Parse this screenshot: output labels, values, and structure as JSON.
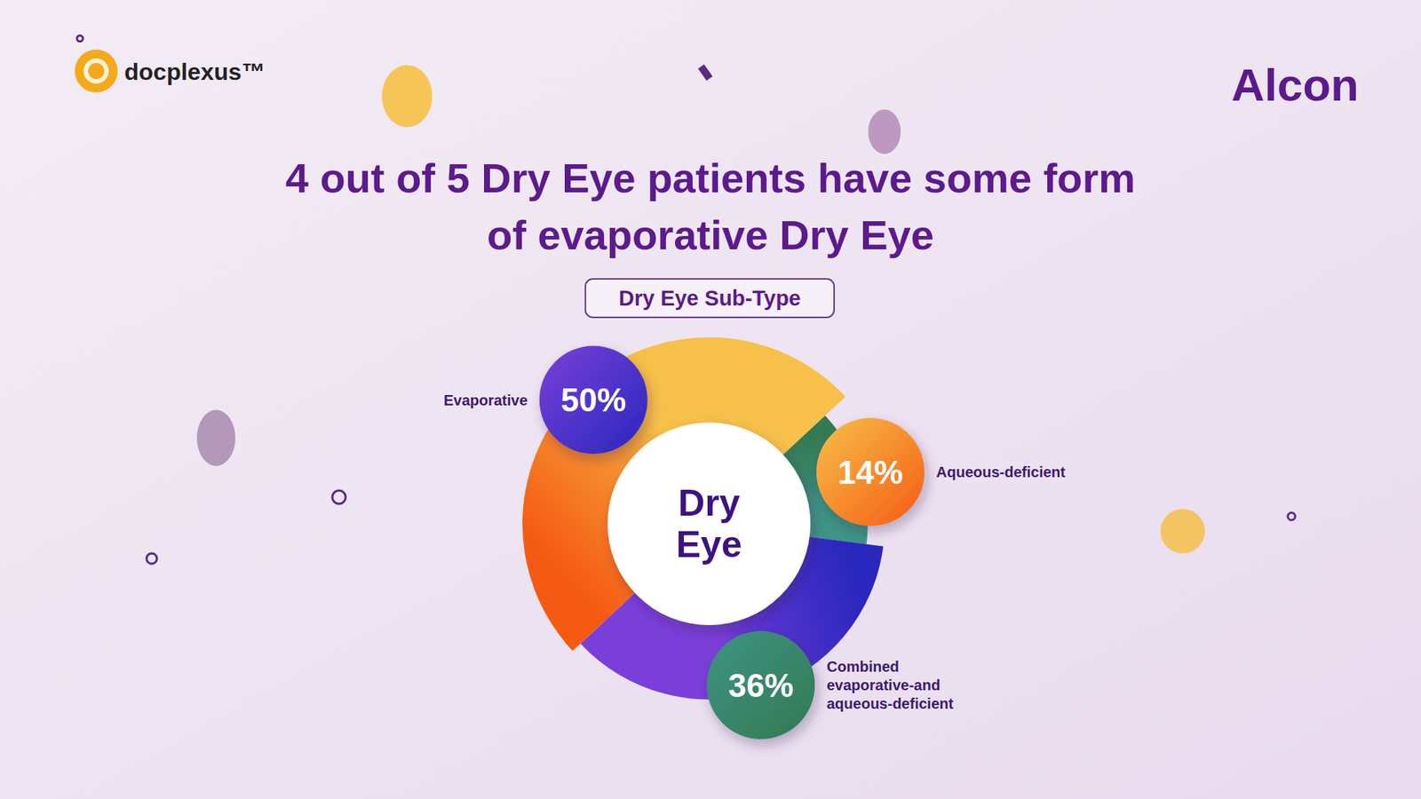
{
  "logos": [
    "docplexus™",
    "Alcon"
  ],
  "chart_data": {
    "type": "pie",
    "title": "4 out of 5 Dry Eye patients have some form of evaporative Dry Eye",
    "subtitle": "Dry Eye Sub-Type",
    "annotations": [
      "Dry Eye"
    ],
    "categories": [
      "Evaporative",
      "Aqueous-deficient",
      "Combined evaporative-and aqueous-deficient"
    ],
    "values": [
      50,
      14,
      36
    ],
    "value_labels": [
      "50%",
      "14%",
      "36%"
    ],
    "data_labels": true,
    "colors": [
      "#f7c04a",
      "#3e9484",
      "#7a3fd8"
    ]
  }
}
